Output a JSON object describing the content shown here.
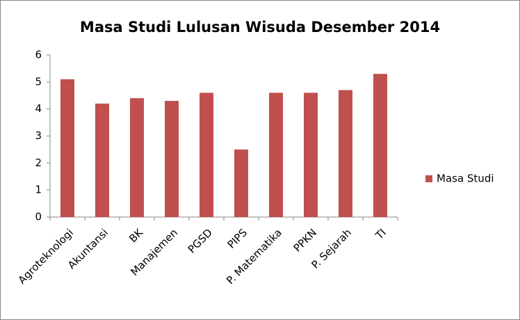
{
  "chart_data": {
    "type": "bar",
    "title": "Masa Studi Lulusan Wisuda Desember 2014",
    "categories": [
      "Agroteknologi",
      "Akuntansi",
      "BK",
      "Manajemen",
      "PGSD",
      "PIPS",
      "P. Matematika",
      "PPKN",
      "P. Sejarah",
      "TI"
    ],
    "series": [
      {
        "name": "Masa Studi",
        "color": "#c0504d",
        "values": [
          5.1,
          4.2,
          4.4,
          4.3,
          4.6,
          2.5,
          4.6,
          4.6,
          4.7,
          5.3
        ]
      }
    ],
    "ylim": [
      0,
      6
    ],
    "yticks": [
      0,
      1,
      2,
      3,
      4,
      5,
      6
    ],
    "grid": false,
    "legend": "right"
  }
}
